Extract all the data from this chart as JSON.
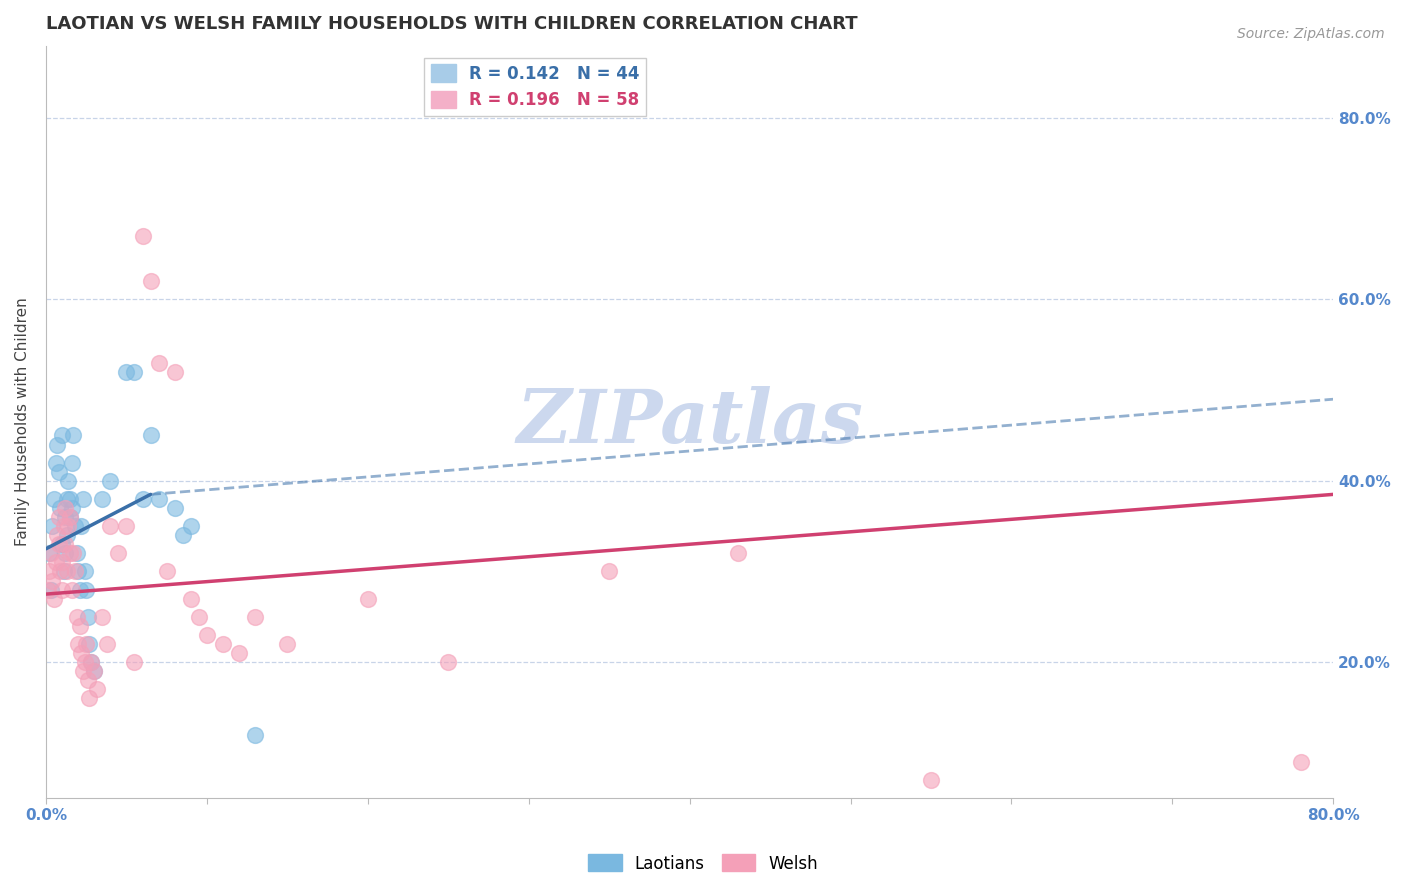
{
  "title": "LAOTIAN VS WELSH FAMILY HOUSEHOLDS WITH CHILDREN CORRELATION CHART",
  "source": "Source: ZipAtlas.com",
  "xlim": [
    0.0,
    0.8
  ],
  "ylim": [
    0.05,
    0.88
  ],
  "watermark": "ZIPatlas",
  "laotian_color": "#7ab8e0",
  "welsh_color": "#f4a0b8",
  "laotian_line_color": "#3a6fa8",
  "welsh_line_color": "#d04070",
  "laotian_scatter": {
    "x": [
      0.002,
      0.003,
      0.004,
      0.005,
      0.006,
      0.007,
      0.008,
      0.009,
      0.01,
      0.01,
      0.011,
      0.012,
      0.012,
      0.013,
      0.013,
      0.014,
      0.015,
      0.015,
      0.016,
      0.016,
      0.017,
      0.018,
      0.019,
      0.02,
      0.021,
      0.022,
      0.023,
      0.024,
      0.025,
      0.026,
      0.027,
      0.028,
      0.03,
      0.035,
      0.04,
      0.05,
      0.055,
      0.06,
      0.065,
      0.07,
      0.08,
      0.085,
      0.09,
      0.13
    ],
    "y": [
      0.32,
      0.28,
      0.35,
      0.38,
      0.42,
      0.44,
      0.41,
      0.37,
      0.33,
      0.45,
      0.3,
      0.36,
      0.32,
      0.38,
      0.34,
      0.4,
      0.36,
      0.38,
      0.42,
      0.37,
      0.45,
      0.35,
      0.32,
      0.3,
      0.28,
      0.35,
      0.38,
      0.3,
      0.28,
      0.25,
      0.22,
      0.2,
      0.19,
      0.38,
      0.4,
      0.52,
      0.52,
      0.38,
      0.45,
      0.38,
      0.37,
      0.34,
      0.35,
      0.12
    ]
  },
  "welsh_scatter": {
    "x": [
      0.001,
      0.002,
      0.003,
      0.004,
      0.005,
      0.006,
      0.007,
      0.008,
      0.008,
      0.009,
      0.01,
      0.01,
      0.011,
      0.012,
      0.012,
      0.013,
      0.014,
      0.015,
      0.015,
      0.016,
      0.017,
      0.018,
      0.019,
      0.02,
      0.021,
      0.022,
      0.023,
      0.024,
      0.025,
      0.026,
      0.027,
      0.028,
      0.03,
      0.032,
      0.035,
      0.038,
      0.04,
      0.045,
      0.05,
      0.055,
      0.06,
      0.065,
      0.07,
      0.075,
      0.08,
      0.09,
      0.095,
      0.1,
      0.11,
      0.12,
      0.13,
      0.15,
      0.2,
      0.25,
      0.35,
      0.43,
      0.55,
      0.78
    ],
    "y": [
      0.28,
      0.3,
      0.32,
      0.29,
      0.27,
      0.31,
      0.34,
      0.36,
      0.33,
      0.3,
      0.28,
      0.31,
      0.35,
      0.37,
      0.33,
      0.3,
      0.35,
      0.32,
      0.36,
      0.28,
      0.32,
      0.3,
      0.25,
      0.22,
      0.24,
      0.21,
      0.19,
      0.2,
      0.22,
      0.18,
      0.16,
      0.2,
      0.19,
      0.17,
      0.25,
      0.22,
      0.35,
      0.32,
      0.35,
      0.2,
      0.67,
      0.62,
      0.53,
      0.3,
      0.52,
      0.27,
      0.25,
      0.23,
      0.22,
      0.21,
      0.25,
      0.22,
      0.27,
      0.2,
      0.3,
      0.32,
      0.07,
      0.09
    ]
  },
  "laotian_line": {
    "x0": 0.0,
    "y0": 0.325,
    "x1": 0.065,
    "y1": 0.385
  },
  "laotian_line_ext": {
    "x0": 0.065,
    "y0": 0.385,
    "x1": 0.8,
    "y1": 0.49
  },
  "welsh_line": {
    "x0": 0.0,
    "y0": 0.275,
    "x1": 0.8,
    "y1": 0.385
  },
  "background_color": "#ffffff",
  "grid_color": "#c8d4e8",
  "title_color": "#333333",
  "axis_tick_color": "#5588cc",
  "watermark_color": "#ccd8ee",
  "title_fontsize": 13,
  "source_fontsize": 10,
  "tick_fontsize": 11,
  "ylabel_fontsize": 11,
  "legend_fontsize": 12
}
